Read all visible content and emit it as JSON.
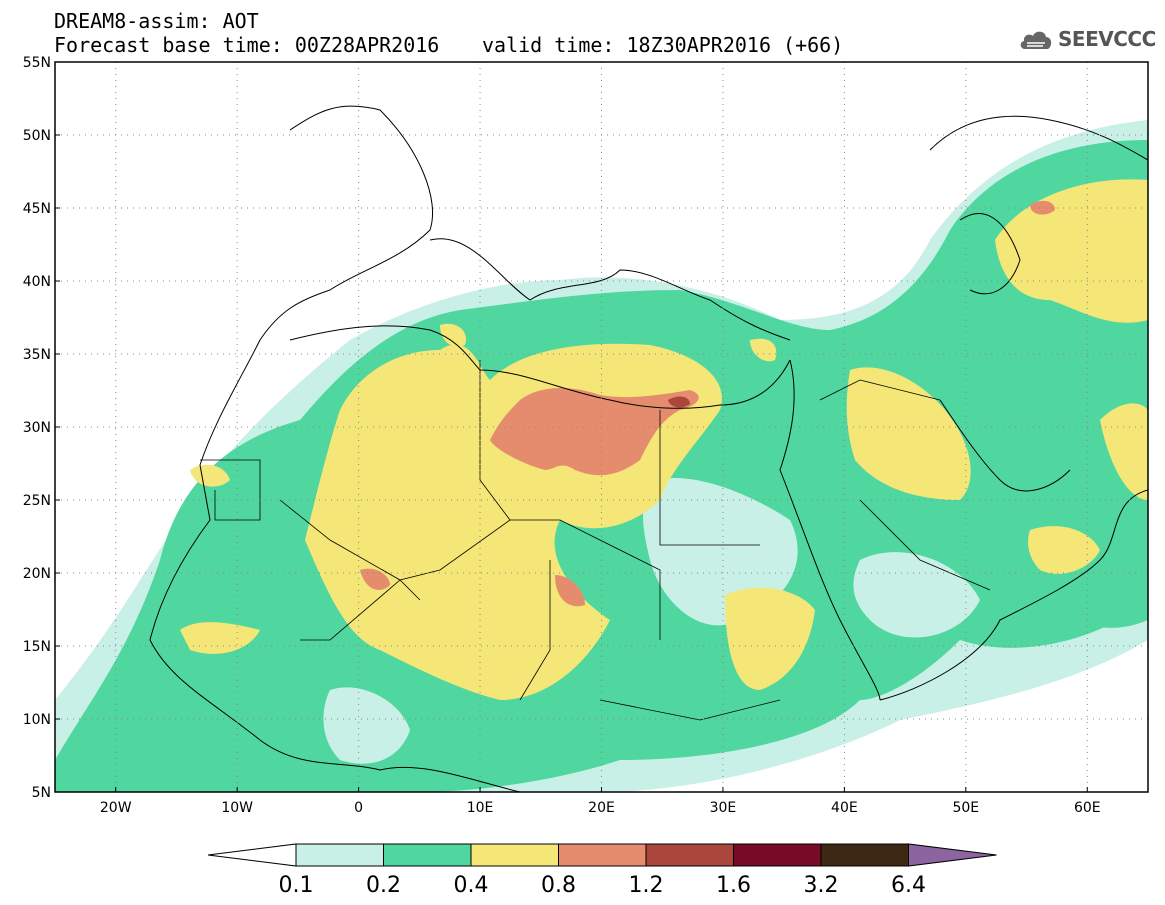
{
  "header": {
    "title_line1": "DREAM8-assim: AOT",
    "title_line2": "Forecast base time: 00Z28APR2016",
    "valid_time": "valid time: 18Z30APR2016 (+66)",
    "logo_text": "SEEVCCC"
  },
  "map": {
    "lon_range": [
      -25,
      65
    ],
    "lat_range": [
      5,
      55
    ],
    "lat_labels": [
      {
        "value": 55,
        "text": "55N"
      },
      {
        "value": 50,
        "text": "50N"
      },
      {
        "value": 45,
        "text": "45N"
      },
      {
        "value": 40,
        "text": "40N"
      },
      {
        "value": 35,
        "text": "35N"
      },
      {
        "value": 30,
        "text": "30N"
      },
      {
        "value": 25,
        "text": "25N"
      },
      {
        "value": 20,
        "text": "20N"
      },
      {
        "value": 15,
        "text": "15N"
      },
      {
        "value": 10,
        "text": "10N"
      },
      {
        "value": 5,
        "text": "5N"
      }
    ],
    "lon_labels": [
      {
        "value": -20,
        "text": "20W"
      },
      {
        "value": -10,
        "text": "10W"
      },
      {
        "value": 0,
        "text": "0"
      },
      {
        "value": 10,
        "text": "10E"
      },
      {
        "value": 20,
        "text": "20E"
      },
      {
        "value": 30,
        "text": "30E"
      },
      {
        "value": 40,
        "text": "40E"
      },
      {
        "value": 50,
        "text": "50E"
      },
      {
        "value": 60,
        "text": "60E"
      }
    ],
    "grid": "dotted"
  },
  "colorbar": {
    "colors": [
      "#ffffff",
      "#c8f0e6",
      "#50d7a0",
      "#f5e678",
      "#e68c6e",
      "#aa463c",
      "#780a28",
      "#3c2814",
      "#8c64a0"
    ],
    "labels": [
      "0.1",
      "0.2",
      "0.4",
      "0.8",
      "1.2",
      "1.6",
      "3.2",
      "6.4"
    ]
  }
}
